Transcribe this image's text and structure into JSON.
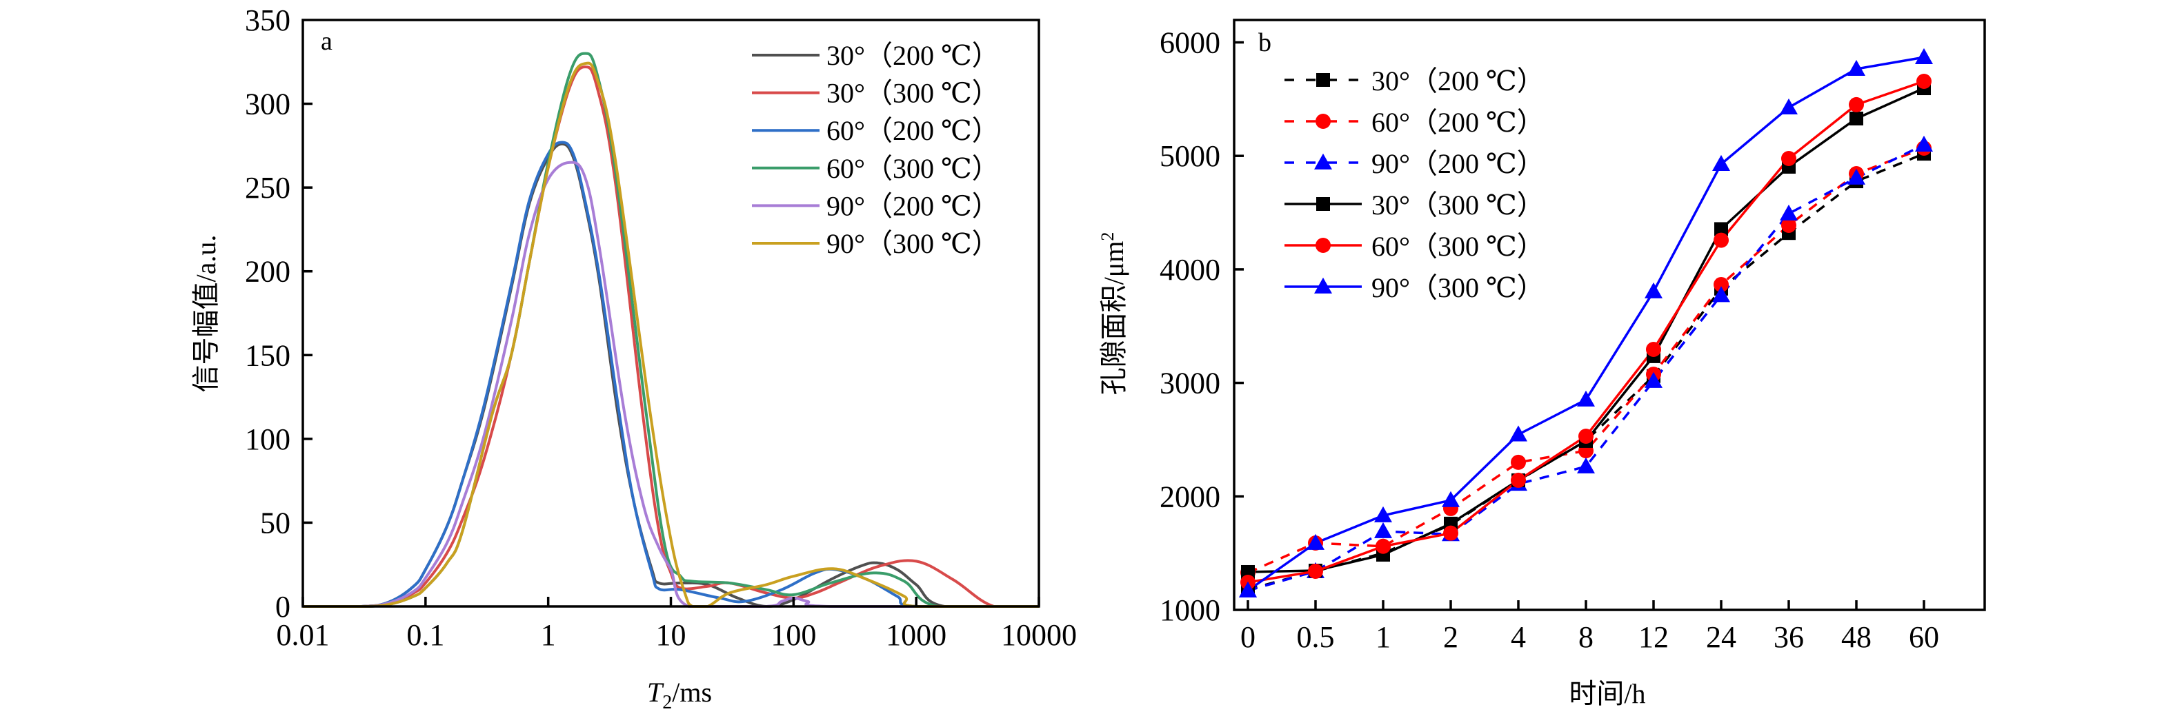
{
  "chart_data": [
    {
      "type": "line",
      "panel_label": "a",
      "xlabel_main": "T",
      "xlabel_sub": "2",
      "xlabel_unit": "/ms",
      "ylabel": "信号幅值/a.u.",
      "xscale": "log",
      "xlim": [
        0.01,
        10000
      ],
      "ylim": [
        0,
        350
      ],
      "xticks": [
        0.01,
        0.1,
        1,
        10,
        100,
        1000,
        10000
      ],
      "xtick_labels": [
        "0.01",
        "0.1",
        "1",
        "10",
        "100",
        "1000",
        "10000"
      ],
      "yticks": [
        0,
        50,
        100,
        150,
        200,
        250,
        300,
        350
      ],
      "ytick_labels": [
        "0",
        "50",
        "100",
        "150",
        "200",
        "250",
        "300",
        "350"
      ],
      "legend_position": "top-right",
      "grid": false,
      "series": [
        {
          "name": "30°（200 ℃）",
          "color": "#505050",
          "x": [
            0.01,
            0.03,
            0.05,
            0.08,
            0.1,
            0.15,
            0.2,
            0.3,
            0.5,
            0.7,
            1,
            1.3,
            1.6,
            2,
            2.6,
            3.7,
            5,
            7,
            8,
            12,
            20,
            35,
            60,
            100,
            200,
            350,
            480,
            700,
            1000,
            1700,
            10000
          ],
          "y": [
            0,
            0,
            2.5,
            12,
            22,
            48,
            75,
            118,
            190,
            240,
            268,
            276,
            268,
            240,
            195,
            115,
            62,
            22,
            14,
            14,
            13,
            5,
            0,
            4,
            16,
            24,
            26,
            22,
            13,
            0,
            0
          ]
        },
        {
          "name": "30°（300 ℃）",
          "color": "#d84a4a",
          "x": [
            0.01,
            0.03,
            0.05,
            0.08,
            0.1,
            0.15,
            0.2,
            0.3,
            0.5,
            0.7,
            1,
            1.5,
            2,
            2.5,
            3.5,
            5.9,
            8,
            10,
            12,
            20,
            30,
            60,
            100,
            150,
            250,
            500,
            1000,
            2000,
            4300,
            10000
          ],
          "y": [
            0,
            0,
            1.5,
            8,
            14,
            32,
            52,
            88,
            150,
            205,
            262,
            310,
            322,
            310,
            255,
            115,
            45,
            20,
            11,
            12,
            14,
            8,
            5,
            8,
            15,
            24,
            27,
            16,
            0,
            0
          ]
        },
        {
          "name": "60°（200 ℃）",
          "color": "#2e6fc7",
          "x": [
            0.01,
            0.03,
            0.05,
            0.08,
            0.1,
            0.15,
            0.2,
            0.3,
            0.5,
            0.7,
            1,
            1.3,
            1.6,
            2,
            2.6,
            3.8,
            5,
            7,
            8,
            12,
            25,
            40,
            80,
            150,
            220,
            400,
            700,
            1000,
            10000
          ],
          "y": [
            0,
            0,
            2.5,
            12,
            22,
            48,
            75,
            120,
            192,
            242,
            270,
            277,
            270,
            242,
            198,
            115,
            62,
            20,
            10.5,
            10,
            5,
            3,
            10,
            20,
            22,
            16,
            6,
            0,
            0
          ]
        },
        {
          "name": "60°（300 ℃）",
          "color": "#3a9d6a",
          "x": [
            0.01,
            0.03,
            0.05,
            0.08,
            0.1,
            0.15,
            0.2,
            0.35,
            0.5,
            0.7,
            1,
            1.5,
            2,
            2.5,
            3.5,
            6.3,
            9,
            12,
            15,
            30,
            60,
            100,
            200,
            450,
            800,
            1500,
            10000
          ],
          "y": [
            0,
            0,
            1.2,
            6,
            11,
            26,
            45,
            115,
            150,
            205,
            265,
            318,
            330,
            318,
            262,
            115,
            35,
            18,
            15,
            14,
            10,
            7,
            14,
            20,
            15,
            0,
            0
          ]
        },
        {
          "name": "90°（200 ℃）",
          "color": "#a87dd6",
          "x": [
            0.01,
            0.03,
            0.05,
            0.08,
            0.1,
            0.15,
            0.2,
            0.3,
            0.5,
            0.7,
            1,
            1.5,
            2,
            2.6,
            4.2,
            6,
            8,
            10,
            14,
            60,
            80,
            100,
            130,
            200,
            10000
          ],
          "y": [
            0,
            0,
            2,
            9,
            17,
            38,
            62,
            102,
            170,
            222,
            255,
            265,
            256,
            215,
            115,
            60,
            35,
            22,
            0,
            0,
            3,
            5,
            3,
            0,
            0
          ]
        },
        {
          "name": "90°（300 ℃）",
          "color": "#c9a020",
          "x": [
            0.01,
            0.03,
            0.05,
            0.08,
            0.1,
            0.15,
            0.2,
            0.35,
            0.5,
            0.7,
            1,
            1.5,
            2,
            2.5,
            3.5,
            6.8,
            10,
            13,
            15,
            20,
            30,
            60,
            100,
            210,
            400,
            800,
            1000,
            10000
          ],
          "y": [
            0,
            0,
            1.2,
            6,
            11,
            26,
            45,
            115,
            150,
            205,
            262,
            312,
            324,
            315,
            268,
            115,
            40,
            8,
            0,
            0,
            8,
            13,
            18,
            22.5,
            16,
            6,
            0,
            0
          ]
        }
      ]
    },
    {
      "type": "line",
      "panel_label": "b",
      "xlabel": "时间/h",
      "ylabel_main": "孔隙面积/μm",
      "ylabel_sup": "2",
      "categories": [
        "0",
        "0.5",
        "1",
        "2",
        "4",
        "8",
        "12",
        "24",
        "36",
        "48",
        "60"
      ],
      "ylim": [
        1000,
        6200
      ],
      "yticks": [
        1000,
        2000,
        3000,
        4000,
        5000,
        6000
      ],
      "ytick_labels": [
        "1000",
        "2000",
        "3000",
        "4000",
        "5000",
        "6000"
      ],
      "legend_position": "top-left",
      "grid": false,
      "series": [
        {
          "name": "30°（200 ℃）",
          "color": "#000000",
          "style": "dashed",
          "marker": "square",
          "values": [
            1180,
            1340,
            1500,
            1750,
            2140,
            2490,
            3060,
            3830,
            4320,
            4776,
            5019
          ]
        },
        {
          "name": "60°（200 ℃）",
          "color": "#ff0000",
          "style": "dashed",
          "marker": "circle",
          "values": [
            1328,
            1589,
            1560,
            1893,
            2300,
            2402,
            3076,
            3866,
            4388,
            4843,
            5068
          ]
        },
        {
          "name": "90°（200 ℃）",
          "color": "#0000ff",
          "style": "dashed",
          "marker": "triangle",
          "values": [
            1170,
            1340,
            1692,
            1666,
            2110,
            2263,
            3016,
            3772,
            4491,
            4807,
            5098
          ]
        },
        {
          "name": "30°（300 ℃）",
          "color": "#000000",
          "style": "solid",
          "marker": "square",
          "values": [
            1334,
            1346,
            1486,
            1760,
            2142,
            2488,
            3235,
            4355,
            4904,
            5329,
            5596
          ]
        },
        {
          "name": "60°（300 ℃）",
          "color": "#ff0000",
          "style": "solid",
          "marker": "circle",
          "values": [
            1243,
            1340,
            1560,
            1676,
            2142,
            2530,
            3295,
            4257,
            4977,
            5451,
            5657
          ]
        },
        {
          "name": "90°（300 ℃）",
          "color": "#0000ff",
          "style": "solid",
          "marker": "triangle",
          "values": [
            1170,
            1589,
            1832,
            1966,
            2545,
            2852,
            3805,
            4928,
            5426,
            5766,
            5869
          ]
        }
      ]
    }
  ]
}
